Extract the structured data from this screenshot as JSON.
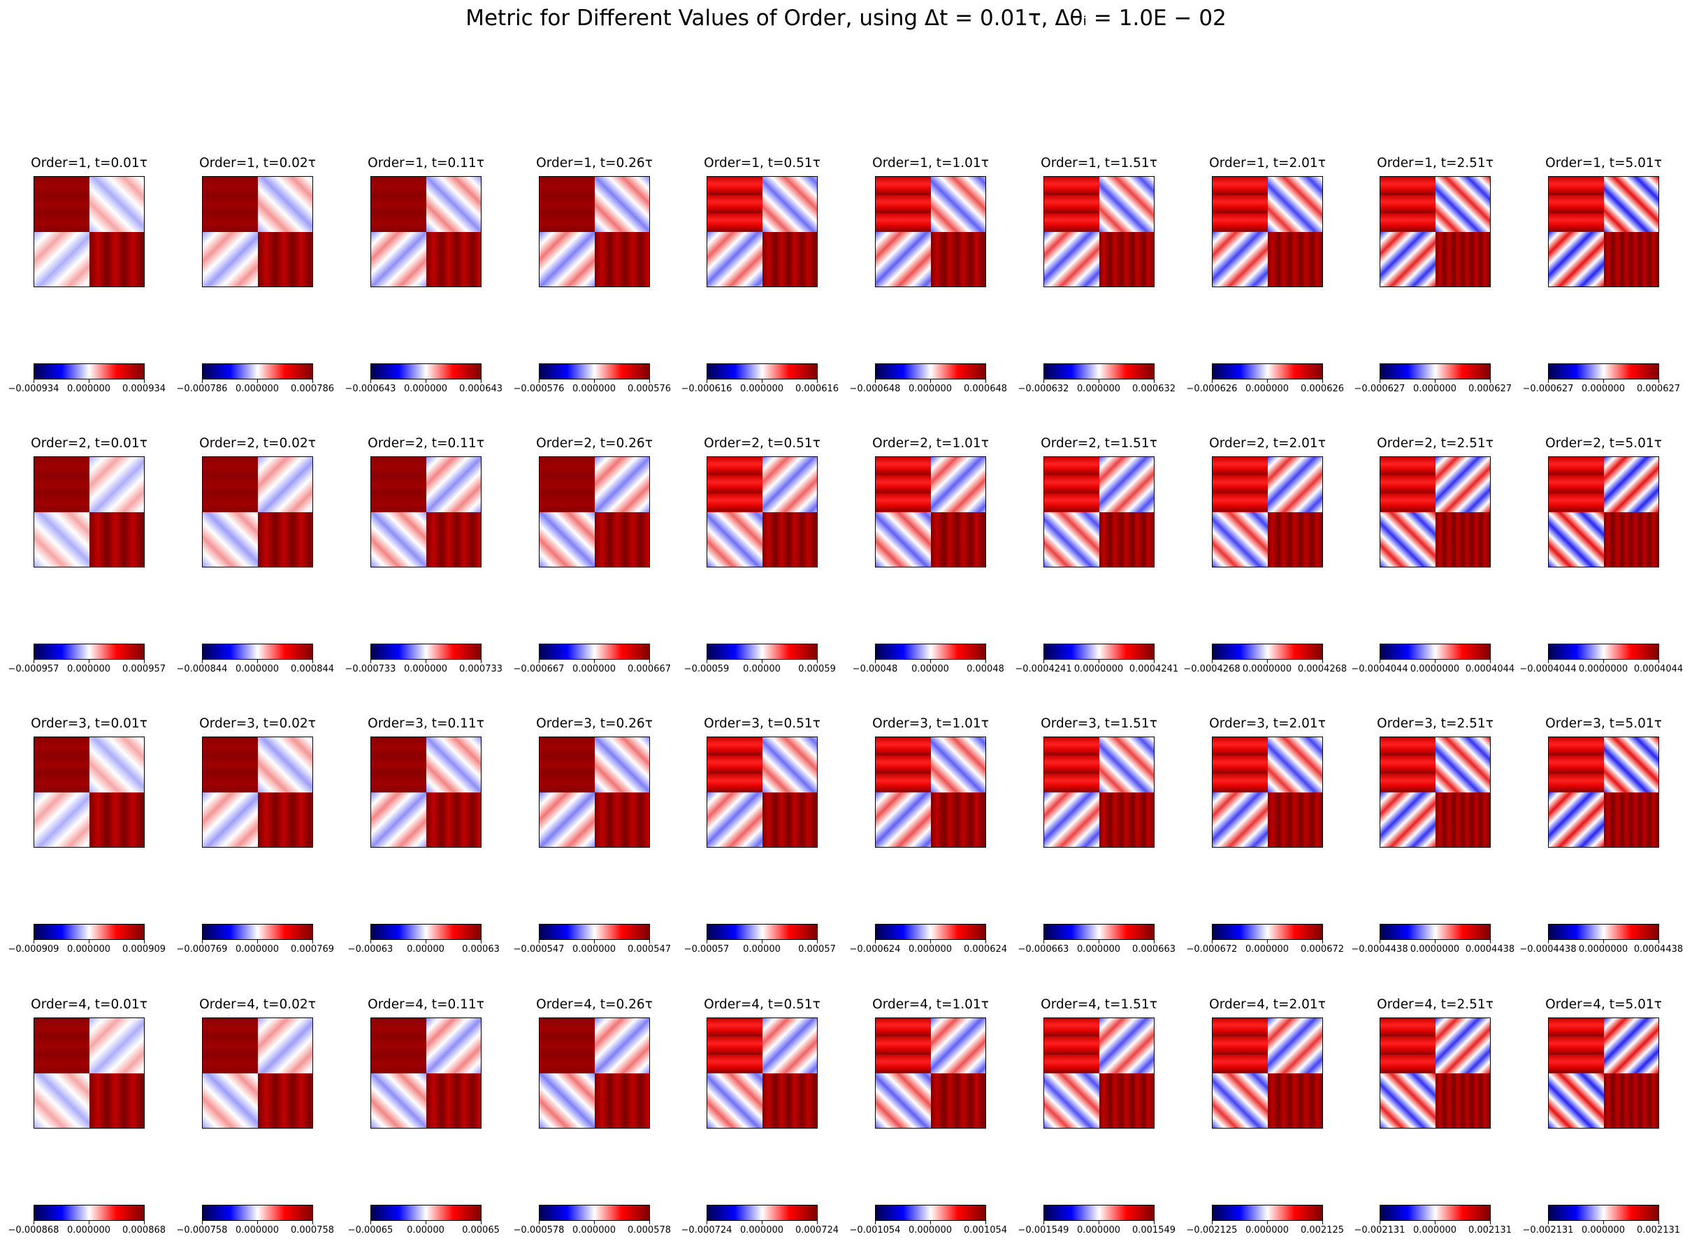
{
  "figure": {
    "title": "Metric for Different Values of Order, using Δt = 0.01τ, Δθᵢ = 1.0E − 02"
  },
  "chart_data": {
    "type": "heatmap",
    "colormap": "seismic",
    "colormap_colors": [
      "#00004c",
      "#0000ff",
      "#ffffff",
      "#ff0000",
      "#7f0000"
    ],
    "times": [
      "0.01",
      "0.02",
      "0.11",
      "0.26",
      "0.51",
      "1.01",
      "1.51",
      "2.01",
      "2.51",
      "5.01"
    ],
    "panels": [
      [
        {
          "title": "Order=1, t=0.01τ",
          "ticks": [
            "−0.000934",
            "0.000000",
            "0.000934"
          ]
        },
        {
          "title": "Order=1, t=0.02τ",
          "ticks": [
            "−0.000786",
            "0.000000",
            "0.000786"
          ]
        },
        {
          "title": "Order=1, t=0.11τ",
          "ticks": [
            "−0.000643",
            "0.000000",
            "0.000643"
          ]
        },
        {
          "title": "Order=1, t=0.26τ",
          "ticks": [
            "−0.000576",
            "0.000000",
            "0.000576"
          ]
        },
        {
          "title": "Order=1, t=0.51τ",
          "ticks": [
            "−0.000616",
            "0.000000",
            "0.000616"
          ]
        },
        {
          "title": "Order=1, t=1.01τ",
          "ticks": [
            "−0.000648",
            "0.000000",
            "0.000648"
          ]
        },
        {
          "title": "Order=1, t=1.51τ",
          "ticks": [
            "−0.000632",
            "0.000000",
            "0.000632"
          ]
        },
        {
          "title": "Order=1, t=2.01τ",
          "ticks": [
            "−0.000626",
            "0.000000",
            "0.000626"
          ]
        },
        {
          "title": "Order=1, t=2.51τ",
          "ticks": [
            "−0.000627",
            "0.000000",
            "0.000627"
          ]
        },
        {
          "title": "Order=1, t=5.01τ",
          "ticks": [
            "−0.000627",
            "0.000000",
            "0.000627"
          ]
        }
      ],
      [
        {
          "title": "Order=2, t=0.01τ",
          "ticks": [
            "−0.000957",
            "0.000000",
            "0.000957"
          ]
        },
        {
          "title": "Order=2, t=0.02τ",
          "ticks": [
            "−0.000844",
            "0.000000",
            "0.000844"
          ]
        },
        {
          "title": "Order=2, t=0.11τ",
          "ticks": [
            "−0.000733",
            "0.000000",
            "0.000733"
          ]
        },
        {
          "title": "Order=2, t=0.26τ",
          "ticks": [
            "−0.000667",
            "0.000000",
            "0.000667"
          ]
        },
        {
          "title": "Order=2, t=0.51τ",
          "ticks": [
            "−0.00059",
            "0.00000",
            "0.00059"
          ]
        },
        {
          "title": "Order=2, t=1.01τ",
          "ticks": [
            "−0.00048",
            "0.00000",
            "0.00048"
          ]
        },
        {
          "title": "Order=2, t=1.51τ",
          "ticks": [
            "−0.0004241",
            "0.0000000",
            "0.0004241"
          ]
        },
        {
          "title": "Order=2, t=2.01τ",
          "ticks": [
            "−0.0004268",
            "0.0000000",
            "0.0004268"
          ]
        },
        {
          "title": "Order=2, t=2.51τ",
          "ticks": [
            "−0.0004044",
            "0.0000000",
            "0.0004044"
          ]
        },
        {
          "title": "Order=2, t=5.01τ",
          "ticks": [
            "−0.0004044",
            "0.0000000",
            "0.0004044"
          ]
        }
      ],
      [
        {
          "title": "Order=3, t=0.01τ",
          "ticks": [
            "−0.000909",
            "0.000000",
            "0.000909"
          ]
        },
        {
          "title": "Order=3, t=0.02τ",
          "ticks": [
            "−0.000769",
            "0.000000",
            "0.000769"
          ]
        },
        {
          "title": "Order=3, t=0.11τ",
          "ticks": [
            "−0.00063",
            "0.00000",
            "0.00063"
          ]
        },
        {
          "title": "Order=3, t=0.26τ",
          "ticks": [
            "−0.000547",
            "0.000000",
            "0.000547"
          ]
        },
        {
          "title": "Order=3, t=0.51τ",
          "ticks": [
            "−0.00057",
            "0.00000",
            "0.00057"
          ]
        },
        {
          "title": "Order=3, t=1.01τ",
          "ticks": [
            "−0.000624",
            "0.000000",
            "0.000624"
          ]
        },
        {
          "title": "Order=3, t=1.51τ",
          "ticks": [
            "−0.000663",
            "0.000000",
            "0.000663"
          ]
        },
        {
          "title": "Order=3, t=2.01τ",
          "ticks": [
            "−0.000672",
            "0.000000",
            "0.000672"
          ]
        },
        {
          "title": "Order=3, t=2.51τ",
          "ticks": [
            "−0.0004438",
            "0.0000000",
            "0.0004438"
          ]
        },
        {
          "title": "Order=3, t=5.01τ",
          "ticks": [
            "−0.0004438",
            "0.0000000",
            "0.0004438"
          ]
        }
      ],
      [
        {
          "title": "Order=4, t=0.01τ",
          "ticks": [
            "−0.000868",
            "0.000000",
            "0.000868"
          ]
        },
        {
          "title": "Order=4, t=0.02τ",
          "ticks": [
            "−0.000758",
            "0.000000",
            "0.000758"
          ]
        },
        {
          "title": "Order=4, t=0.11τ",
          "ticks": [
            "−0.00065",
            "0.00000",
            "0.00065"
          ]
        },
        {
          "title": "Order=4, t=0.26τ",
          "ticks": [
            "−0.000578",
            "0.000000",
            "0.000578"
          ]
        },
        {
          "title": "Order=4, t=0.51τ",
          "ticks": [
            "−0.000724",
            "0.000000",
            "0.000724"
          ]
        },
        {
          "title": "Order=4, t=1.01τ",
          "ticks": [
            "−0.001054",
            "0.000000",
            "0.001054"
          ]
        },
        {
          "title": "Order=4, t=1.51τ",
          "ticks": [
            "−0.001549",
            "0.000000",
            "0.001549"
          ]
        },
        {
          "title": "Order=4, t=2.01τ",
          "ticks": [
            "−0.002125",
            "0.000000",
            "0.002125"
          ]
        },
        {
          "title": "Order=4, t=2.51τ",
          "ticks": [
            "−0.002131",
            "0.000000",
            "0.002131"
          ]
        },
        {
          "title": "Order=4, t=5.01τ",
          "ticks": [
            "−0.002131",
            "0.000000",
            "0.002131"
          ]
        }
      ]
    ]
  }
}
